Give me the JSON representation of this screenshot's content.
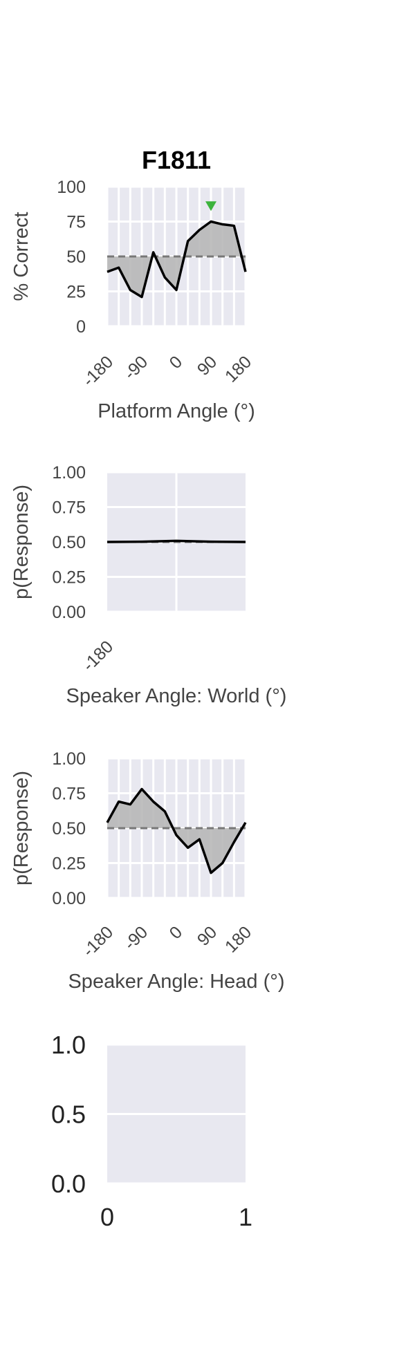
{
  "figure": {
    "title": "F1811"
  },
  "chart_data": [
    {
      "type": "area",
      "panel": "platform",
      "title": "F1811",
      "xlabel": "Platform Angle (°)",
      "ylabel": "% Correct",
      "xlim": [
        -180,
        180
      ],
      "ylim": [
        0,
        100
      ],
      "xticks": [
        -180,
        -90,
        0,
        90,
        180
      ],
      "xticklabels": [
        "-180",
        "-90",
        "0",
        "90",
        "180"
      ],
      "yticks": [
        0,
        25,
        50,
        75,
        100
      ],
      "yticklabels": [
        "0",
        "25",
        "50",
        "75",
        "100"
      ],
      "x_gridlines": [
        -180,
        -150,
        -120,
        -90,
        -60,
        -30,
        0,
        30,
        60,
        90,
        120,
        150,
        180
      ],
      "reference_line": 50,
      "series": [
        {
          "x": [
            -180,
            -150,
            -120,
            -90,
            -60,
            -30,
            0,
            30,
            60,
            90,
            120,
            150,
            180
          ],
          "values": [
            39,
            42,
            26,
            21,
            53,
            35,
            26,
            61,
            69,
            75,
            73,
            72,
            39
          ]
        }
      ],
      "marker": {
        "x": 90,
        "y": 86,
        "shape": "triangle-down",
        "color": "#3cb33c"
      },
      "grid": true,
      "colors": {
        "line": "#000000",
        "fill": "#b4b4b4",
        "reference": "#777777",
        "background": "#e8e8f0"
      }
    },
    {
      "type": "line",
      "panel": "world",
      "xlabel": "Speaker Angle: World (°)",
      "ylabel": "p(Response)",
      "xlim": [
        -180,
        180
      ],
      "ylim": [
        0,
        1
      ],
      "xticks": [
        -180
      ],
      "xticklabels": [
        "-180"
      ],
      "yticks": [
        0,
        0.25,
        0.5,
        0.75,
        1
      ],
      "yticklabels": [
        "0.00",
        "0.25",
        "0.50",
        "0.75",
        "1.00"
      ],
      "x_gridlines": [
        0
      ],
      "reference_line": 0.5,
      "series": [
        {
          "x": [
            -180,
            -90,
            0,
            90,
            180
          ],
          "values": [
            0.5,
            0.502,
            0.508,
            0.502,
            0.5
          ]
        }
      ],
      "grid": true,
      "colors": {
        "line": "#000000",
        "fill": "#b4b4b4",
        "reference": "#777777",
        "background": "#e8e8f0"
      }
    },
    {
      "type": "area",
      "panel": "head",
      "xlabel": "Speaker Angle: Head (°)",
      "ylabel": "p(Response)",
      "xlim": [
        -180,
        180
      ],
      "ylim": [
        0,
        1
      ],
      "xticks": [
        -180,
        -90,
        0,
        90,
        180
      ],
      "xticklabels": [
        "-180",
        "-90",
        "0",
        "90",
        "180"
      ],
      "yticks": [
        0,
        0.25,
        0.5,
        0.75,
        1
      ],
      "yticklabels": [
        "0.00",
        "0.25",
        "0.50",
        "0.75",
        "1.00"
      ],
      "x_gridlines": [
        -180,
        -150,
        -120,
        -90,
        -60,
        -30,
        0,
        30,
        60,
        90,
        120,
        150,
        180
      ],
      "reference_line": 0.5,
      "series": [
        {
          "x": [
            -180,
            -150,
            -120,
            -90,
            -60,
            -30,
            0,
            30,
            60,
            90,
            120,
            150,
            180
          ],
          "values": [
            0.54,
            0.69,
            0.67,
            0.78,
            0.69,
            0.62,
            0.45,
            0.36,
            0.42,
            0.18,
            0.25,
            0.4,
            0.54
          ]
        }
      ],
      "grid": true,
      "colors": {
        "line": "#000000",
        "fill": "#b4b4b4",
        "reference": "#777777",
        "background": "#e8e8f0"
      }
    },
    {
      "type": "line",
      "panel": "empty",
      "xlim": [
        0,
        1
      ],
      "ylim": [
        0,
        1
      ],
      "xticks": [
        0,
        1
      ],
      "xticklabels": [
        "0",
        "1"
      ],
      "yticks": [
        0,
        0.5,
        1
      ],
      "yticklabels": [
        "0.0",
        "0.5",
        "1.0"
      ],
      "x_gridlines": [],
      "series": [],
      "grid": true,
      "colors": {
        "background": "#e8e8f0"
      }
    }
  ]
}
